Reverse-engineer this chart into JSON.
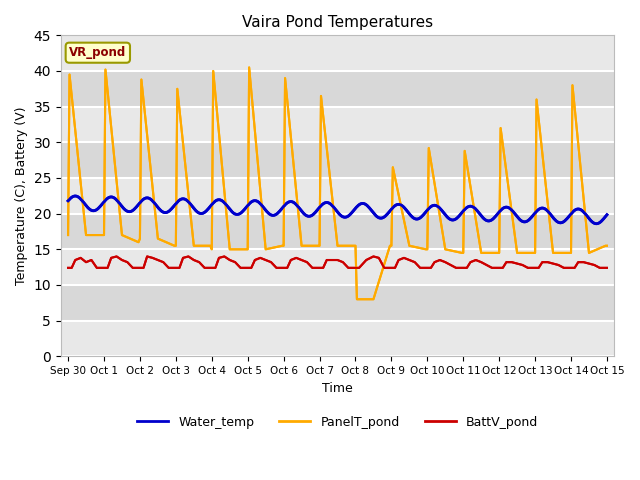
{
  "title": "Vaira Pond Temperatures",
  "xlabel": "Time",
  "ylabel": "Temperature (C), Battery (V)",
  "ylim": [
    0,
    45
  ],
  "yticks": [
    0,
    5,
    10,
    15,
    20,
    25,
    30,
    35,
    40,
    45
  ],
  "xtick_labels": [
    "Sep 30",
    "Oct 1",
    "Oct 2",
    "Oct 3",
    "Oct 4",
    "Oct 5",
    "Oct 6",
    "Oct 7",
    "Oct 8",
    "Oct 9",
    "Oct 10",
    "Oct 11",
    "Oct 12",
    "Oct 13",
    "Oct 14",
    "Oct 15"
  ],
  "xtick_positions": [
    0,
    1,
    2,
    3,
    4,
    5,
    6,
    7,
    8,
    9,
    10,
    11,
    12,
    13,
    14,
    15
  ],
  "water_color": "#0000cc",
  "panel_color": "#ffaa00",
  "batt_color": "#cc0000",
  "annotation_text": "VR_pond",
  "annotation_color": "#8b0000",
  "annotation_bg": "#ffffcc",
  "annotation_border": "#999900",
  "bg_color": "#e8e8e8",
  "legend_labels": [
    "Water_temp",
    "PanelT_pond",
    "BattV_pond"
  ],
  "grid_color": "#d8d8d8",
  "panel_temp_x": [
    0.0,
    0.04,
    0.5,
    0.96,
    1.0,
    1.04,
    1.5,
    1.96,
    2.0,
    2.04,
    2.5,
    2.96,
    3.0,
    3.04,
    3.5,
    3.96,
    4.0,
    4.04,
    4.5,
    4.96,
    5.0,
    5.04,
    5.5,
    5.96,
    6.0,
    6.04,
    6.5,
    6.96,
    7.0,
    7.04,
    7.5,
    7.96,
    8.0,
    8.04,
    8.3,
    8.5,
    8.96,
    9.0,
    9.04,
    9.5,
    9.96,
    10.0,
    10.04,
    10.5,
    10.96,
    11.0,
    11.04,
    11.5,
    11.96,
    12.0,
    12.04,
    12.5,
    12.96,
    13.0,
    13.04,
    13.5,
    13.96,
    14.0,
    14.04,
    14.5,
    14.96,
    15.0
  ],
  "panel_temp_y": [
    17.0,
    39.5,
    17.0,
    17.0,
    17.0,
    40.2,
    17.0,
    16.0,
    16.5,
    38.8,
    16.5,
    15.5,
    15.5,
    37.5,
    15.5,
    15.5,
    15.0,
    40.0,
    15.0,
    15.0,
    15.0,
    40.5,
    15.0,
    15.5,
    15.5,
    39.0,
    15.5,
    15.5,
    15.5,
    36.5,
    15.5,
    15.5,
    15.5,
    8.0,
    8.0,
    8.0,
    15.5,
    15.5,
    26.5,
    15.5,
    15.0,
    15.0,
    29.2,
    15.0,
    14.5,
    14.5,
    28.8,
    14.5,
    14.5,
    14.5,
    32.0,
    14.5,
    14.5,
    14.5,
    36.0,
    14.5,
    14.5,
    14.5,
    38.0,
    14.5,
    15.5,
    15.5
  ],
  "batt_x": [
    0.0,
    0.1,
    0.2,
    0.35,
    0.5,
    0.65,
    0.8,
    1.0,
    1.1,
    1.2,
    1.35,
    1.5,
    1.65,
    1.8,
    2.0,
    2.1,
    2.2,
    2.35,
    2.5,
    2.65,
    2.8,
    3.0,
    3.1,
    3.2,
    3.35,
    3.5,
    3.65,
    3.8,
    4.0,
    4.1,
    4.2,
    4.35,
    4.5,
    4.65,
    4.8,
    5.0,
    5.1,
    5.2,
    5.35,
    5.5,
    5.65,
    5.8,
    6.0,
    6.1,
    6.2,
    6.35,
    6.5,
    6.65,
    6.8,
    7.0,
    7.1,
    7.2,
    7.35,
    7.5,
    7.65,
    7.8,
    8.0,
    8.1,
    8.3,
    8.5,
    8.65,
    8.8,
    9.0,
    9.1,
    9.2,
    9.35,
    9.5,
    9.65,
    9.8,
    10.0,
    10.1,
    10.2,
    10.35,
    10.5,
    10.65,
    10.8,
    11.0,
    11.1,
    11.2,
    11.35,
    11.5,
    11.65,
    11.8,
    12.0,
    12.1,
    12.2,
    12.35,
    12.5,
    12.65,
    12.8,
    13.0,
    13.1,
    13.2,
    13.35,
    13.5,
    13.65,
    13.8,
    14.0,
    14.1,
    14.2,
    14.35,
    14.5,
    14.65,
    14.8,
    15.0
  ],
  "batt_y": [
    12.4,
    12.4,
    13.5,
    13.8,
    13.2,
    13.5,
    12.4,
    12.4,
    12.4,
    13.8,
    14.0,
    13.5,
    13.2,
    12.4,
    12.4,
    12.4,
    14.0,
    13.8,
    13.5,
    13.2,
    12.4,
    12.4,
    12.4,
    13.8,
    14.0,
    13.5,
    13.2,
    12.4,
    12.4,
    12.4,
    13.8,
    14.0,
    13.5,
    13.2,
    12.4,
    12.4,
    12.4,
    13.5,
    13.8,
    13.5,
    13.2,
    12.4,
    12.4,
    12.4,
    13.5,
    13.8,
    13.5,
    13.2,
    12.4,
    12.4,
    12.4,
    13.5,
    13.5,
    13.5,
    13.2,
    12.4,
    12.4,
    12.4,
    13.5,
    14.0,
    13.8,
    12.4,
    12.4,
    12.4,
    13.5,
    13.8,
    13.5,
    13.2,
    12.4,
    12.4,
    12.4,
    13.2,
    13.5,
    13.2,
    12.8,
    12.4,
    12.4,
    12.4,
    13.2,
    13.5,
    13.2,
    12.8,
    12.4,
    12.4,
    12.4,
    13.2,
    13.2,
    13.0,
    12.8,
    12.4,
    12.4,
    12.4,
    13.2,
    13.2,
    13.0,
    12.8,
    12.4,
    12.4,
    12.4,
    13.2,
    13.2,
    13.0,
    12.8,
    12.4,
    12.4
  ]
}
